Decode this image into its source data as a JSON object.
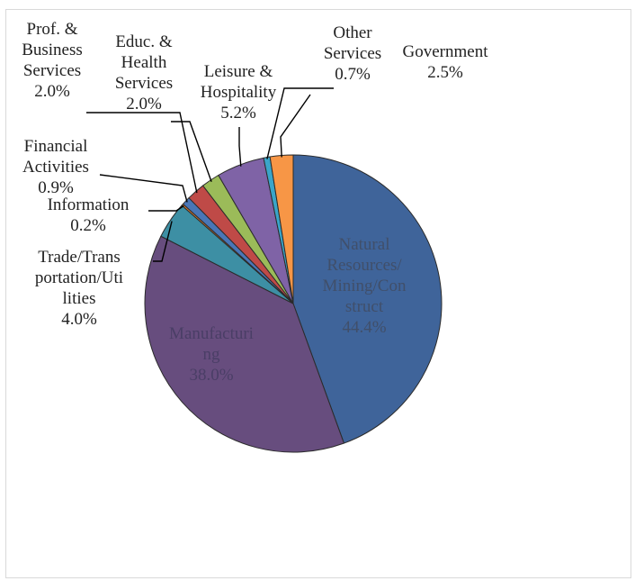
{
  "chart_data": {
    "type": "pie",
    "title": "",
    "slices": [
      {
        "label": "Natural Resources/Mining/Construct",
        "value": 44.4,
        "value_label": "44.4%",
        "color": "#3f649a",
        "label_lines": [
          "Natural",
          "Resources/",
          "Mining/Con",
          "struct"
        ]
      },
      {
        "label": "Manufacturing",
        "value": 38.0,
        "value_label": "38.0%",
        "color": "#674d7e",
        "label_lines": [
          "Manufacturi",
          "ng"
        ]
      },
      {
        "label": "Trade/Transportation/Utilities",
        "value": 4.0,
        "value_label": "4.0%",
        "color": "#3d8fa4",
        "label_lines": [
          "Trade/Trans",
          "portation/Uti",
          "lities"
        ]
      },
      {
        "label": "Information",
        "value": 0.2,
        "value_label": "0.2%",
        "color": "#e07a2d",
        "label_lines": [
          "Information"
        ]
      },
      {
        "label": "Financial Activities",
        "value": 0.9,
        "value_label": "0.9%",
        "color": "#4a76b6",
        "label_lines": [
          "Financial",
          "Activities"
        ]
      },
      {
        "label": "Prof. & Business Services",
        "value": 2.0,
        "value_label": "2.0%",
        "color": "#bf4a47",
        "label_lines": [
          "Prof. &",
          "Business",
          "Services"
        ]
      },
      {
        "label": "Educ. & Health Services",
        "value": 2.0,
        "value_label": "2.0%",
        "color": "#9bbb59",
        "label_lines": [
          "Educ. &",
          "Health",
          "Services"
        ]
      },
      {
        "label": "Leisure & Hospitality",
        "value": 5.2,
        "value_label": "5.2%",
        "color": "#7f63a6",
        "label_lines": [
          "Leisure &",
          "Hospitality"
        ]
      },
      {
        "label": "Other Services",
        "value": 0.7,
        "value_label": "0.7%",
        "color": "#3aa5c9",
        "label_lines": [
          "Other",
          "Services"
        ]
      },
      {
        "label": "Government",
        "value": 2.5,
        "value_label": "2.5%",
        "color": "#f79646",
        "label_lines": [
          "Government"
        ]
      }
    ]
  }
}
